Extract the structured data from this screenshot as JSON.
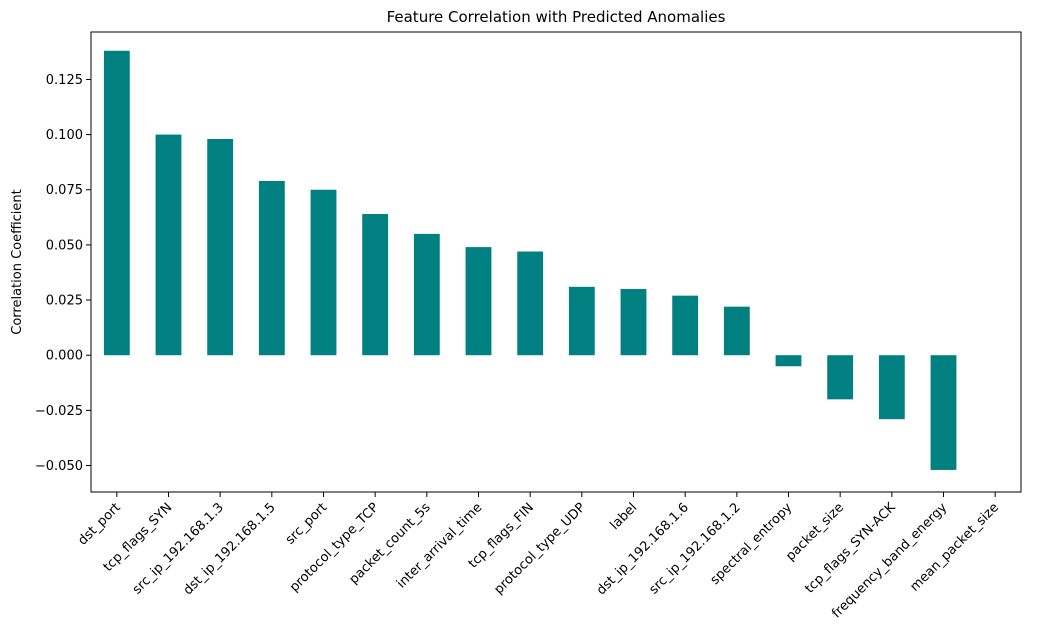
{
  "chart_data": {
    "type": "bar",
    "title": "Feature Correlation with Predicted Anomalies",
    "xlabel": "",
    "ylabel": "Correlation Coefficient",
    "categories": [
      "dst_port",
      "tcp_flags_SYN",
      "src_ip_192.168.1.3",
      "dst_ip_192.168.1.5",
      "src_port",
      "protocol_type_TCP",
      "packet_count_5s",
      "inter_arrival_time",
      "tcp_flags_FIN",
      "protocol_type_UDP",
      "label",
      "dst_ip_192.168.1.6",
      "src_ip_192.168.1.2",
      "spectral_entropy",
      "packet_size",
      "tcp_flags_SYN-ACK",
      "frequency_band_energy",
      "mean_packet_size"
    ],
    "values": [
      0.138,
      0.1,
      0.098,
      0.079,
      0.075,
      0.064,
      0.055,
      0.049,
      0.047,
      0.031,
      0.03,
      0.027,
      0.022,
      -0.005,
      -0.02,
      -0.029,
      -0.052,
      0.0
    ],
    "ylim": [
      -0.062,
      0.1465
    ],
    "yticks": [
      -0.05,
      -0.025,
      0.0,
      0.025,
      0.05,
      0.075,
      0.1,
      0.125
    ],
    "ytick_labels": [
      "−0.050",
      "−0.025",
      "0.000",
      "0.025",
      "0.050",
      "0.075",
      "0.100",
      "0.125"
    ],
    "bar_color": "#008080",
    "grid": false,
    "legend": "none"
  }
}
